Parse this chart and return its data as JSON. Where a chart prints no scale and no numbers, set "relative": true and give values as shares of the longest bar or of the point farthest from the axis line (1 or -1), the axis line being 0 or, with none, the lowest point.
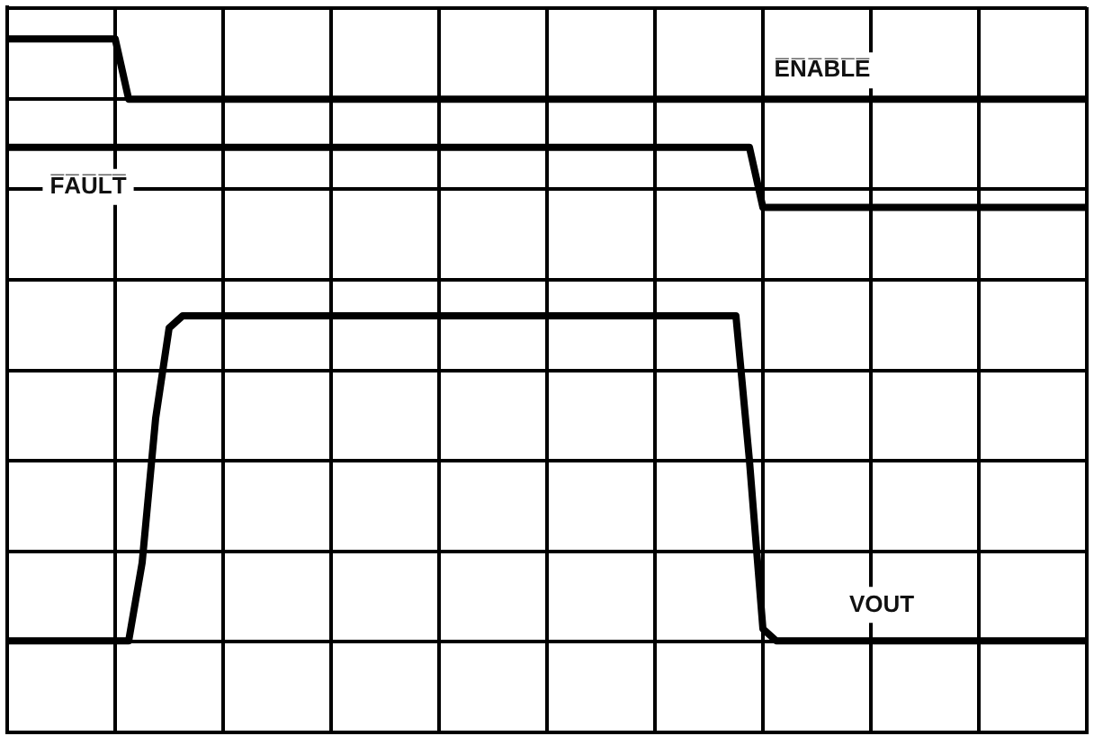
{
  "chart_data": {
    "type": "line",
    "relative": true,
    "categories": [
      null,
      null,
      null,
      null,
      null,
      null,
      null,
      null,
      null,
      null,
      null,
      null,
      null,
      null,
      null,
      null,
      null,
      null,
      null,
      null,
      null,
      null,
      null,
      null,
      null,
      null,
      null,
      null,
      null,
      null,
      null,
      null,
      null,
      null,
      null,
      null,
      null,
      null,
      null,
      null,
      null,
      null,
      null,
      null,
      null,
      null,
      null,
      null,
      null,
      null,
      null,
      null,
      null,
      null,
      null,
      null,
      null,
      null,
      null,
      null,
      null,
      null,
      null,
      null,
      null,
      null,
      null,
      null,
      null,
      null,
      null,
      null,
      null,
      null,
      null,
      null,
      null,
      null,
      null,
      null,
      null
    ],
    "tick_labels": false,
    "grid": true,
    "legend": false,
    "marker": "none",
    "line_style": "solid",
    "series": [
      {
        "name": "E̅N̅A̅B̅L̅E̅",
        "color": "#000000",
        "values": [
          1,
          1,
          1,
          1,
          1,
          1,
          1,
          1,
          1,
          0.9,
          0.9,
          0.9,
          0.9,
          0.9,
          0.9,
          0.9,
          0.9,
          0.9,
          0.9,
          0.9,
          0.9,
          0.9,
          0.9,
          0.9,
          0.9,
          0.9,
          0.9,
          0.9,
          0.9,
          0.9,
          0.9,
          0.9,
          0.9,
          0.9,
          0.9,
          0.9,
          0.9,
          0.9,
          0.9,
          0.9,
          0.9,
          0.9,
          0.9,
          0.9,
          0.9,
          0.9,
          0.9,
          0.9,
          0.9,
          0.9,
          0.9,
          0.9,
          0.9,
          0.9,
          0.9,
          0.9,
          0.9,
          0.9,
          0.9,
          0.9,
          0.9,
          0.9,
          0.9,
          0.9,
          0.9,
          0.9,
          0.9,
          0.9,
          0.9,
          0.9,
          0.9,
          0.9,
          0.9,
          0.9,
          0.9,
          0.9,
          0.9,
          0.9,
          0.9,
          0.9,
          0.9
        ]
      },
      {
        "name": "F̅A̅U̅L̅T̅",
        "color": "#000000",
        "values": [
          0.82,
          0.82,
          0.82,
          0.82,
          0.82,
          0.82,
          0.82,
          0.82,
          0.82,
          0.82,
          0.82,
          0.82,
          0.82,
          0.82,
          0.82,
          0.82,
          0.82,
          0.82,
          0.82,
          0.82,
          0.82,
          0.82,
          0.82,
          0.82,
          0.82,
          0.82,
          0.82,
          0.82,
          0.82,
          0.82,
          0.82,
          0.82,
          0.82,
          0.82,
          0.82,
          0.82,
          0.82,
          0.82,
          0.82,
          0.82,
          0.82,
          0.82,
          0.82,
          0.82,
          0.82,
          0.82,
          0.82,
          0.82,
          0.82,
          0.82,
          0.82,
          0.82,
          0.82,
          0.82,
          0.82,
          0.82,
          0.72,
          0.72,
          0.72,
          0.72,
          0.72,
          0.72,
          0.72,
          0.72,
          0.72,
          0.72,
          0.72,
          0.72,
          0.72,
          0.72,
          0.72,
          0.72,
          0.72,
          0.72,
          0.72,
          0.72,
          0.72,
          0.72,
          0.72,
          0.72,
          0.72
        ]
      },
      {
        "name": "VOUT",
        "color": "#000000",
        "values": [
          0,
          0,
          0,
          0,
          0,
          0,
          0,
          0,
          0,
          0,
          0.13,
          0.37,
          0.52,
          0.54,
          0.54,
          0.54,
          0.54,
          0.54,
          0.54,
          0.54,
          0.54,
          0.54,
          0.54,
          0.54,
          0.54,
          0.54,
          0.54,
          0.54,
          0.54,
          0.54,
          0.54,
          0.54,
          0.54,
          0.54,
          0.54,
          0.54,
          0.54,
          0.54,
          0.54,
          0.54,
          0.54,
          0.54,
          0.54,
          0.54,
          0.54,
          0.54,
          0.54,
          0.54,
          0.54,
          0.54,
          0.54,
          0.54,
          0.54,
          0.54,
          0.54,
          0.3,
          0.02,
          0,
          0,
          0,
          0,
          0,
          0,
          0,
          0,
          0,
          0,
          0,
          0,
          0,
          0,
          0,
          0,
          0,
          0,
          0,
          0,
          0,
          0,
          0,
          0
        ]
      }
    ]
  }
}
